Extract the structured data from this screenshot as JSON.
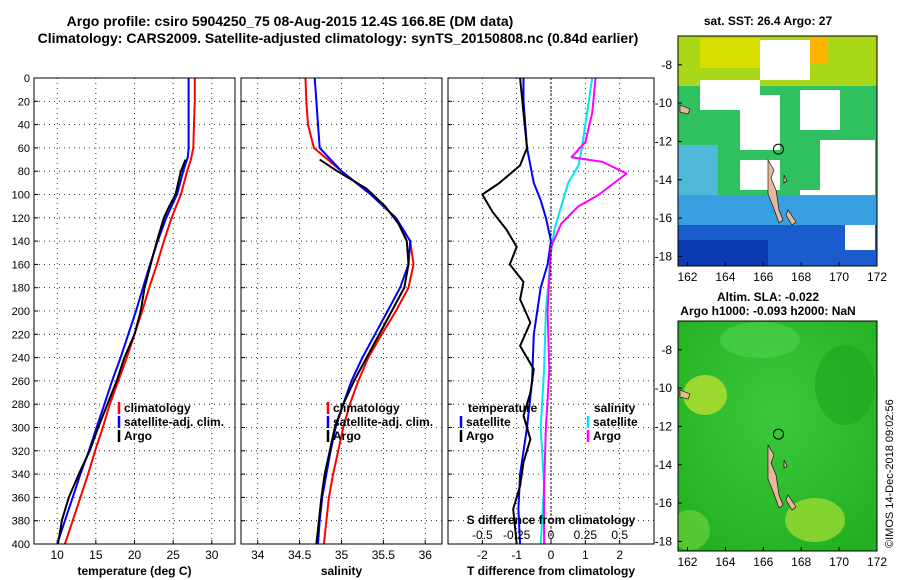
{
  "header": {
    "title_line1": "Argo profile: csiro 5904250_75 08-Aug-2015 12.4S 166.8E (DM data)",
    "title_line2": "Climatology: CARS2009. Satellite-adjusted climatology: synTS_20150808.nc (0.84d earlier)"
  },
  "credit": "©IMOS 14-Dec-2018 09:02:56",
  "colors": {
    "climatology": "#ff0000",
    "satellite": "#0000ff",
    "argo": "#000000",
    "sat_salinity": "#00e5ee",
    "argo_salinity": "#ff00ff"
  },
  "chart_data": [
    {
      "id": "temperature",
      "type": "line",
      "xlabel": "temperature (deg C)",
      "ylabel": "",
      "xlim": [
        7,
        33
      ],
      "ylim": [
        400,
        0
      ],
      "xticks": [
        10,
        15,
        20,
        25,
        30
      ],
      "xticklabels": [
        "10",
        "15",
        "20",
        "25",
        "30"
      ],
      "yticks": [
        0,
        20,
        40,
        60,
        80,
        100,
        120,
        140,
        160,
        180,
        200,
        220,
        240,
        260,
        280,
        300,
        320,
        340,
        360,
        380,
        400
      ],
      "yticklabels": [
        "0",
        "20",
        "40",
        "60",
        "80",
        "100",
        "120",
        "140",
        "160",
        "180",
        "200",
        "220",
        "240",
        "260",
        "280",
        "300",
        "320",
        "340",
        "360",
        "380",
        "400"
      ],
      "grid": true,
      "legend": [
        "climatology",
        "satellite-adj. clim.",
        "Argo"
      ],
      "series": [
        {
          "name": "climatology",
          "color": "#ff0000",
          "points": [
            [
              27.8,
              0
            ],
            [
              27.8,
              20
            ],
            [
              27.7,
              40
            ],
            [
              27.6,
              60
            ],
            [
              27.3,
              70
            ],
            [
              26.8,
              80
            ],
            [
              26.0,
              100
            ],
            [
              24.8,
              120
            ],
            [
              23.8,
              140
            ],
            [
              22.9,
              160
            ],
            [
              21.9,
              180
            ],
            [
              21.0,
              200
            ],
            [
              20.0,
              220
            ],
            [
              19.0,
              240
            ],
            [
              17.9,
              260
            ],
            [
              16.8,
              280
            ],
            [
              15.9,
              300
            ],
            [
              14.9,
              320
            ],
            [
              14.0,
              340
            ],
            [
              13.0,
              360
            ],
            [
              12.0,
              380
            ],
            [
              11.0,
              400
            ]
          ]
        },
        {
          "name": "satellite-adj. clim.",
          "color": "#0000ff",
          "points": [
            [
              27.0,
              0
            ],
            [
              27.0,
              20
            ],
            [
              27.0,
              40
            ],
            [
              27.0,
              60
            ],
            [
              26.9,
              68
            ],
            [
              26.3,
              80
            ],
            [
              25.5,
              100
            ],
            [
              24.1,
              120
            ],
            [
              23.0,
              140
            ],
            [
              22.0,
              160
            ],
            [
              21.1,
              180
            ],
            [
              20.2,
              200
            ],
            [
              19.2,
              220
            ],
            [
              18.2,
              240
            ],
            [
              17.1,
              260
            ],
            [
              16.1,
              280
            ],
            [
              15.1,
              300
            ],
            [
              14.1,
              320
            ],
            [
              13.0,
              340
            ],
            [
              12.0,
              360
            ],
            [
              11.0,
              380
            ],
            [
              10.0,
              400
            ]
          ]
        },
        {
          "name": "Argo",
          "color": "#000000",
          "points": [
            [
              26.6,
              70
            ],
            [
              26.0,
              80
            ],
            [
              25.3,
              100
            ],
            [
              24.5,
              110
            ],
            [
              23.8,
              120
            ],
            [
              22.9,
              140
            ],
            [
              22.1,
              160
            ],
            [
              21.3,
              180
            ],
            [
              20.8,
              200
            ],
            [
              20.0,
              220
            ],
            [
              18.7,
              240
            ],
            [
              17.7,
              260
            ],
            [
              16.5,
              280
            ],
            [
              15.3,
              300
            ],
            [
              14.2,
              320
            ],
            [
              12.8,
              340
            ],
            [
              11.5,
              360
            ],
            [
              10.6,
              380
            ],
            [
              10.1,
              400
            ]
          ]
        }
      ]
    },
    {
      "id": "salinity",
      "type": "line",
      "xlabel": "salinity",
      "ylabel": "",
      "xlim": [
        33.8,
        36.2
      ],
      "ylim": [
        400,
        0
      ],
      "xticks": [
        34,
        34.5,
        35,
        35.5,
        36
      ],
      "xticklabels": [
        "34",
        "34.5",
        "35",
        "35.5",
        "36"
      ],
      "yticks": [
        0,
        20,
        40,
        60,
        80,
        100,
        120,
        140,
        160,
        180,
        200,
        220,
        240,
        260,
        280,
        300,
        320,
        340,
        360,
        380,
        400
      ],
      "grid": true,
      "legend": [
        "climatology",
        "satellite-adj. clim.",
        "Argo"
      ],
      "series": [
        {
          "name": "climatology",
          "color": "#ff0000",
          "points": [
            [
              34.57,
              0
            ],
            [
              34.58,
              20
            ],
            [
              34.6,
              40
            ],
            [
              34.67,
              60
            ],
            [
              35.0,
              80
            ],
            [
              35.35,
              100
            ],
            [
              35.65,
              120
            ],
            [
              35.82,
              140
            ],
            [
              35.86,
              160
            ],
            [
              35.8,
              180
            ],
            [
              35.65,
              200
            ],
            [
              35.48,
              220
            ],
            [
              35.32,
              240
            ],
            [
              35.2,
              260
            ],
            [
              35.1,
              280
            ],
            [
              35.02,
              300
            ],
            [
              34.96,
              320
            ],
            [
              34.9,
              340
            ],
            [
              34.85,
              360
            ],
            [
              34.82,
              380
            ],
            [
              34.79,
              400
            ]
          ]
        },
        {
          "name": "satellite-adj. clim.",
          "color": "#0000ff",
          "points": [
            [
              34.68,
              0
            ],
            [
              34.7,
              20
            ],
            [
              34.72,
              40
            ],
            [
              34.74,
              60
            ],
            [
              35.0,
              80
            ],
            [
              35.35,
              100
            ],
            [
              35.65,
              120
            ],
            [
              35.82,
              140
            ],
            [
              35.8,
              160
            ],
            [
              35.7,
              180
            ],
            [
              35.55,
              200
            ],
            [
              35.4,
              220
            ],
            [
              35.25,
              240
            ],
            [
              35.12,
              260
            ],
            [
              35.02,
              280
            ],
            [
              34.93,
              300
            ],
            [
              34.87,
              320
            ],
            [
              34.82,
              340
            ],
            [
              34.77,
              360
            ],
            [
              34.74,
              380
            ],
            [
              34.72,
              400
            ]
          ]
        },
        {
          "name": "Argo",
          "color": "#000000",
          "points": [
            [
              34.74,
              70
            ],
            [
              34.95,
              80
            ],
            [
              35.3,
              95
            ],
            [
              35.52,
              110
            ],
            [
              35.68,
              125
            ],
            [
              35.78,
              140
            ],
            [
              35.8,
              160
            ],
            [
              35.75,
              180
            ],
            [
              35.6,
              200
            ],
            [
              35.45,
              220
            ],
            [
              35.3,
              240
            ],
            [
              35.15,
              260
            ],
            [
              35.02,
              280
            ],
            [
              34.92,
              300
            ],
            [
              34.86,
              320
            ],
            [
              34.8,
              340
            ],
            [
              34.76,
              360
            ],
            [
              34.73,
              380
            ],
            [
              34.7,
              400
            ]
          ]
        }
      ]
    },
    {
      "id": "differences",
      "type": "line",
      "xlabel": "T difference from climatology",
      "xlabel_top": "S difference from climatology",
      "xlim": [
        -3,
        3
      ],
      "ylim": [
        400,
        0
      ],
      "xticks": [
        -2,
        -1,
        0,
        1,
        2
      ],
      "xticklabels": [
        "-2",
        "-1",
        "0",
        "1",
        "2"
      ],
      "s_xticks": [
        -2,
        -1,
        0,
        1,
        2
      ],
      "s_xticklabels": [
        "-0.5",
        "-0.25",
        "0",
        "0.25",
        "0.5"
      ],
      "yticks": [
        0,
        20,
        40,
        60,
        80,
        100,
        120,
        140,
        160,
        180,
        200,
        220,
        240,
        260,
        280,
        300,
        320,
        340,
        360,
        380,
        400
      ],
      "grid": true,
      "legend_left_title": "temperature",
      "legend_left": [
        "satellite",
        "Argo"
      ],
      "legend_right_title": "salinity",
      "legend_right": [
        "satellite",
        "Argo"
      ],
      "series": [
        {
          "name": "temperature satellite",
          "color": "#0000ff",
          "points": [
            [
              -0.8,
              0
            ],
            [
              -0.8,
              20
            ],
            [
              -0.75,
              40
            ],
            [
              -0.7,
              60
            ],
            [
              -0.6,
              75
            ],
            [
              -0.5,
              90
            ],
            [
              -0.3,
              105
            ],
            [
              -0.15,
              120
            ],
            [
              0,
              140
            ],
            [
              -0.1,
              160
            ],
            [
              -0.3,
              180
            ],
            [
              -0.5,
              220
            ],
            [
              -0.55,
              260
            ],
            [
              -0.7,
              300
            ],
            [
              -0.9,
              340
            ],
            [
              -0.95,
              370
            ],
            [
              -0.9,
              400
            ]
          ]
        },
        {
          "name": "temperature Argo",
          "color": "#000000",
          "points": [
            [
              -0.9,
              0
            ],
            [
              -0.8,
              30
            ],
            [
              -0.7,
              60
            ],
            [
              -0.9,
              75
            ],
            [
              -1.5,
              90
            ],
            [
              -2.0,
              100
            ],
            [
              -1.7,
              115
            ],
            [
              -1.3,
              130
            ],
            [
              -1.0,
              145
            ],
            [
              -1.2,
              160
            ],
            [
              -0.8,
              175
            ],
            [
              -0.9,
              190
            ],
            [
              -0.6,
              210
            ],
            [
              -0.9,
              230
            ],
            [
              -0.5,
              250
            ],
            [
              -0.6,
              270
            ],
            [
              -0.8,
              290
            ],
            [
              -0.6,
              310
            ],
            [
              -0.8,
              330
            ],
            [
              -0.9,
              350
            ],
            [
              -1.1,
              370
            ],
            [
              -1.0,
              400
            ]
          ]
        },
        {
          "name": "salinity satellite",
          "color": "#00e5ee",
          "points": [
            [
              1.2,
              0
            ],
            [
              1.1,
              20
            ],
            [
              1.0,
              40
            ],
            [
              0.9,
              60
            ],
            [
              0.8,
              75
            ],
            [
              0.5,
              90
            ],
            [
              0.3,
              110
            ],
            [
              0.1,
              130
            ],
            [
              0,
              150
            ],
            [
              -0.15,
              200
            ],
            [
              -0.2,
              250
            ],
            [
              -0.3,
              300
            ],
            [
              -0.2,
              350
            ],
            [
              -0.3,
              400
            ]
          ]
        },
        {
          "name": "salinity Argo",
          "color": "#ff00ff",
          "points": [
            [
              1.3,
              0
            ],
            [
              1.2,
              30
            ],
            [
              1.0,
              55
            ],
            [
              0.6,
              68
            ],
            [
              1.5,
              72
            ],
            [
              2.2,
              82
            ],
            [
              1.4,
              100
            ],
            [
              0.8,
              110
            ],
            [
              0.3,
              125
            ],
            [
              0,
              145
            ],
            [
              -0.1,
              200
            ],
            [
              -0.05,
              250
            ],
            [
              -0.15,
              300
            ],
            [
              -0.2,
              350
            ],
            [
              -0.2,
              400
            ]
          ]
        }
      ]
    },
    {
      "id": "sst_map",
      "type": "heatmap",
      "title": "sat. SST: 26.4 Argo: 27",
      "xlim": [
        161.5,
        172
      ],
      "ylim": [
        -18.5,
        -6.5
      ],
      "xticks": [
        162,
        164,
        166,
        168,
        170,
        172
      ],
      "yticks": [
        -8,
        -10,
        -12,
        -14,
        -16,
        -18
      ],
      "yticklabels": [
        "-8",
        "-10",
        "-12",
        "-14",
        "-16",
        "-18"
      ],
      "argo_position": [
        166.8,
        -12.4
      ]
    },
    {
      "id": "sla_map",
      "type": "heatmap",
      "title": "Altim. SLA: -0.022",
      "subtitle": "Argo h1000: -0.093 h2000: NaN",
      "xlim": [
        161.5,
        172
      ],
      "ylim": [
        -18.5,
        -6.5
      ],
      "xticks": [
        162,
        164,
        166,
        168,
        170,
        172
      ],
      "yticks": [
        -8,
        -10,
        -12,
        -14,
        -16,
        -18
      ],
      "yticklabels": [
        "-8",
        "-10",
        "-12",
        "-14",
        "-16",
        "-18"
      ],
      "argo_position": [
        166.8,
        -12.4
      ]
    }
  ]
}
